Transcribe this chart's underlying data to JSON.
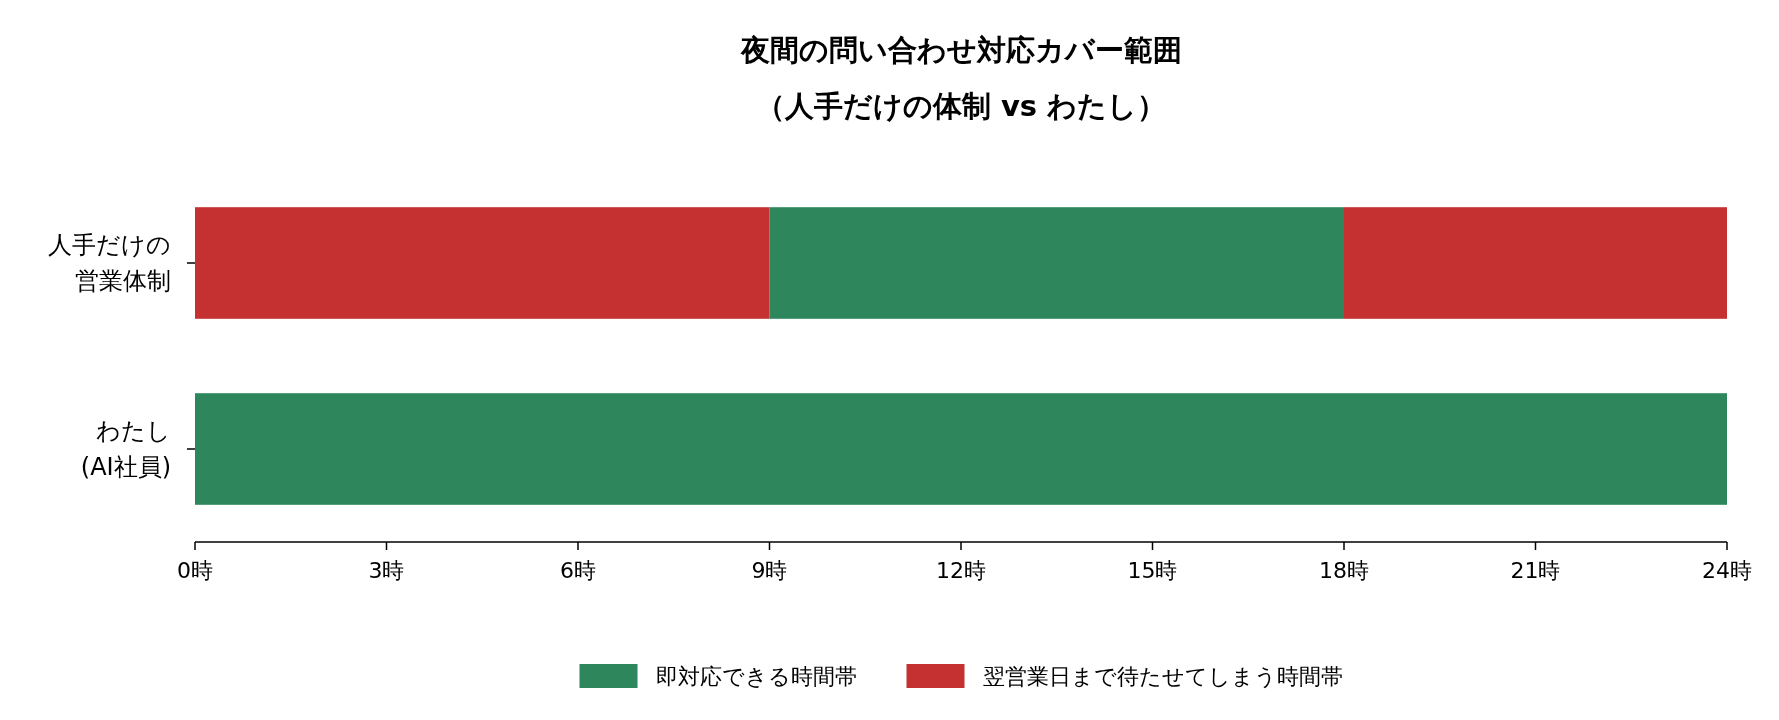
{
  "chart_data": {
    "type": "bar",
    "orientation": "horizontal",
    "title": "夜間の問い合わせ対応カバー範囲（人手だけの体制 vs わたし）",
    "categories": [
      "人手だけの営業体制",
      "わたし(AI社員)"
    ],
    "series": [
      {
        "name": "即対応できる時間帯",
        "color": "#2e875c",
        "values": [
          9,
          24
        ],
        "base": [
          9,
          0
        ]
      },
      {
        "name": "翌営業日まで待たせてしまう時間帯",
        "color": "#c53030",
        "values": [
          9,
          null
        ],
        "base": [
          0,
          null
        ]
      },
      {
        "color": "#c53030",
        "values": [
          6,
          null
        ],
        "base": [
          18,
          null
        ]
      }
    ],
    "xlim": [
      0,
      24
    ],
    "xticks": [
      {
        "value": 0,
        "label": "0時"
      },
      {
        "value": 3,
        "label": "3時"
      },
      {
        "value": 6,
        "label": "6時"
      },
      {
        "value": 9,
        "label": "9時"
      },
      {
        "value": 12,
        "label": "12時"
      },
      {
        "value": 15,
        "label": "15時"
      },
      {
        "value": 18,
        "label": "18時"
      },
      {
        "value": 21,
        "label": "21時"
      },
      {
        "value": 24,
        "label": "24時"
      }
    ],
    "grid": false,
    "legend": "bottom"
  }
}
